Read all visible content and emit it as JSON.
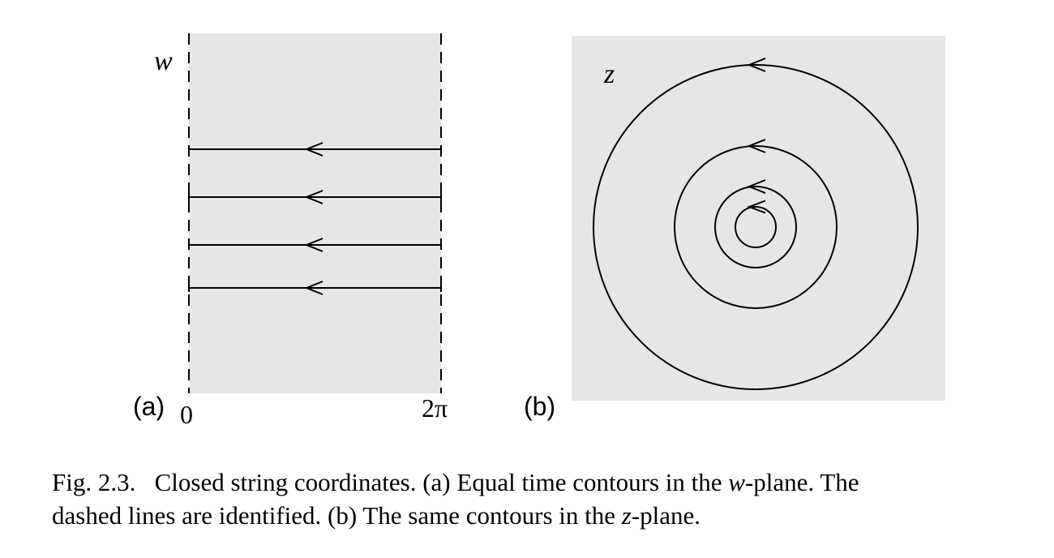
{
  "panel_a": {
    "label": "(a)",
    "var_label": "w",
    "tick_left": "0",
    "tick_right": "2π",
    "contour_count": 4
  },
  "panel_b": {
    "label": "(b)",
    "var_label": "z",
    "contour_count": 4
  },
  "caption": {
    "figno": "Fig. 2.3.",
    "line1_a": "Closed string coordinates. (a) Equal time contours in the ",
    "line1_var": "w",
    "line1_b": "-plane. The",
    "line2_a": "dashed lines are identified. (b) The same contours in the ",
    "line2_var": "z",
    "line2_b": "-plane."
  }
}
